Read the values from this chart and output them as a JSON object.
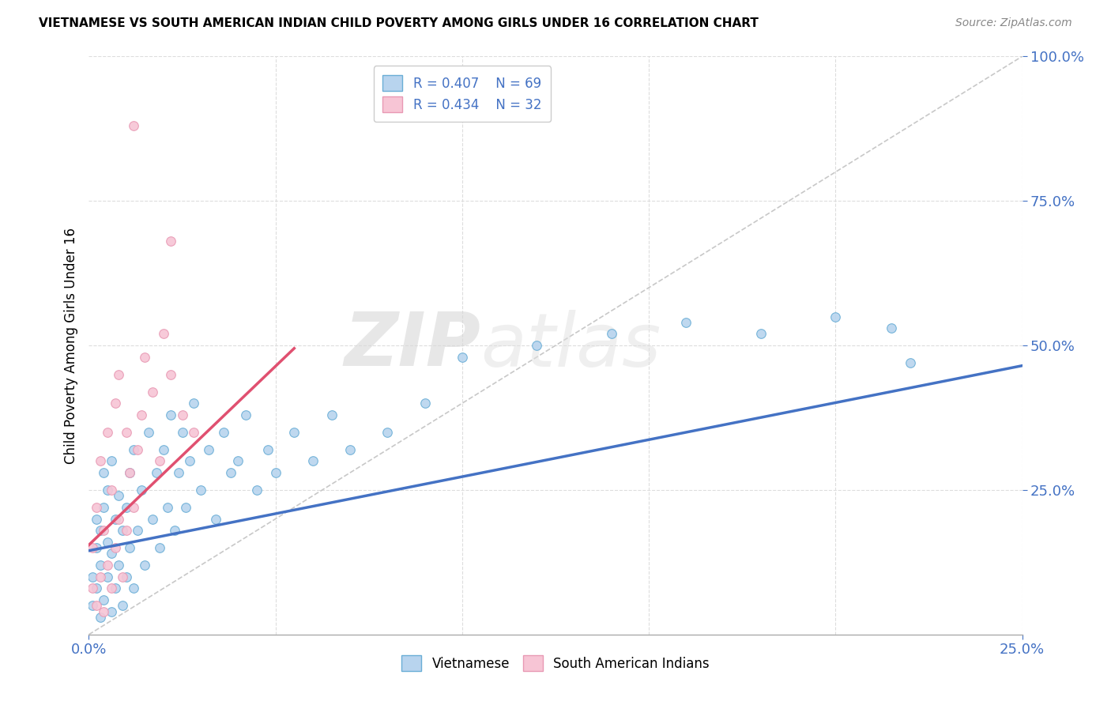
{
  "title": "VIETNAMESE VS SOUTH AMERICAN INDIAN CHILD POVERTY AMONG GIRLS UNDER 16 CORRELATION CHART",
  "source": "Source: ZipAtlas.com",
  "ylabel": "Child Poverty Among Girls Under 16",
  "xmin": 0.0,
  "xmax": 0.25,
  "ymin": 0.0,
  "ymax": 1.0,
  "legend_r_viet": "R = 0.407",
  "legend_n_viet": "N = 69",
  "legend_r_sa": "R = 0.434",
  "legend_n_sa": "N = 32",
  "color_viet_fill": "#b8d4ee",
  "color_viet_edge": "#6aaed6",
  "color_sa_fill": "#f7c5d5",
  "color_sa_edge": "#e899b4",
  "color_viet_line": "#4472c4",
  "color_sa_line": "#e05070",
  "color_diag": "#c8c8c8",
  "watermark_zip": "ZIP",
  "watermark_atlas": "atlas",
  "viet_x": [
    0.001,
    0.001,
    0.002,
    0.002,
    0.002,
    0.003,
    0.003,
    0.003,
    0.004,
    0.004,
    0.004,
    0.005,
    0.005,
    0.005,
    0.006,
    0.006,
    0.006,
    0.007,
    0.007,
    0.008,
    0.008,
    0.009,
    0.009,
    0.01,
    0.01,
    0.011,
    0.011,
    0.012,
    0.012,
    0.013,
    0.014,
    0.015,
    0.016,
    0.017,
    0.018,
    0.019,
    0.02,
    0.021,
    0.022,
    0.023,
    0.024,
    0.025,
    0.026,
    0.027,
    0.028,
    0.03,
    0.032,
    0.034,
    0.036,
    0.038,
    0.04,
    0.042,
    0.045,
    0.048,
    0.05,
    0.055,
    0.06,
    0.065,
    0.07,
    0.08,
    0.09,
    0.1,
    0.12,
    0.14,
    0.16,
    0.18,
    0.2,
    0.215,
    0.22
  ],
  "viet_y": [
    0.05,
    0.1,
    0.08,
    0.15,
    0.2,
    0.03,
    0.12,
    0.18,
    0.06,
    0.22,
    0.28,
    0.1,
    0.16,
    0.25,
    0.04,
    0.14,
    0.3,
    0.08,
    0.2,
    0.12,
    0.24,
    0.05,
    0.18,
    0.1,
    0.22,
    0.15,
    0.28,
    0.08,
    0.32,
    0.18,
    0.25,
    0.12,
    0.35,
    0.2,
    0.28,
    0.15,
    0.32,
    0.22,
    0.38,
    0.18,
    0.28,
    0.35,
    0.22,
    0.3,
    0.4,
    0.25,
    0.32,
    0.2,
    0.35,
    0.28,
    0.3,
    0.38,
    0.25,
    0.32,
    0.28,
    0.35,
    0.3,
    0.38,
    0.32,
    0.35,
    0.4,
    0.48,
    0.5,
    0.52,
    0.54,
    0.52,
    0.55,
    0.53,
    0.47
  ],
  "sa_x": [
    0.001,
    0.001,
    0.002,
    0.002,
    0.003,
    0.003,
    0.004,
    0.004,
    0.005,
    0.005,
    0.006,
    0.006,
    0.007,
    0.007,
    0.008,
    0.008,
    0.009,
    0.01,
    0.01,
    0.011,
    0.012,
    0.013,
    0.014,
    0.015,
    0.017,
    0.019,
    0.02,
    0.022,
    0.025,
    0.028,
    0.012,
    0.022
  ],
  "sa_y": [
    0.08,
    0.15,
    0.05,
    0.22,
    0.1,
    0.3,
    0.04,
    0.18,
    0.12,
    0.35,
    0.08,
    0.25,
    0.15,
    0.4,
    0.2,
    0.45,
    0.1,
    0.18,
    0.35,
    0.28,
    0.22,
    0.32,
    0.38,
    0.48,
    0.42,
    0.3,
    0.52,
    0.45,
    0.38,
    0.35,
    0.88,
    0.68
  ],
  "viet_line_x": [
    0.0,
    0.25
  ],
  "viet_line_y": [
    0.145,
    0.465
  ],
  "sa_line_x": [
    0.0,
    0.055
  ],
  "sa_line_y": [
    0.155,
    0.495
  ]
}
